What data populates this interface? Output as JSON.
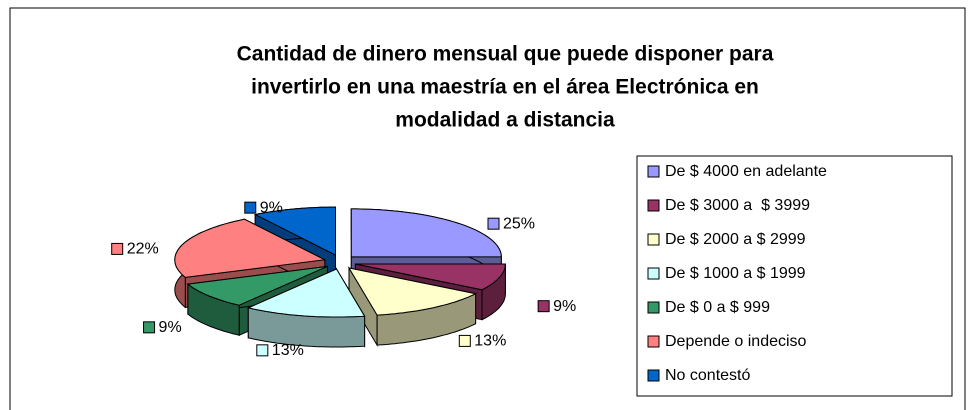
{
  "chart_data": {
    "type": "pie3d",
    "title": [
      "Cantidad de dinero mensual que puede disponer para",
      "invertirlo en una maestría en el área Electrónica en",
      "modalidad a distancia"
    ],
    "categories": [
      "De $ 4000 en adelante",
      "De $ 3000 a  $ 3999",
      "De $ 2000 a $ 2999",
      "De $ 1000 a $ 1999",
      "De $ 0 a $ 999",
      "Depende o indeciso",
      "No contestó"
    ],
    "values": [
      25,
      9,
      13,
      13,
      9,
      22,
      9
    ],
    "value_labels": [
      "25%",
      "9%",
      "13%",
      "13%",
      "9%",
      "22%",
      "9%"
    ],
    "colors": [
      "#9999ff",
      "#993366",
      "#ffffcc",
      "#ccffff",
      "#339966",
      "#ff8080",
      "#0066cc"
    ],
    "legend": "right"
  }
}
